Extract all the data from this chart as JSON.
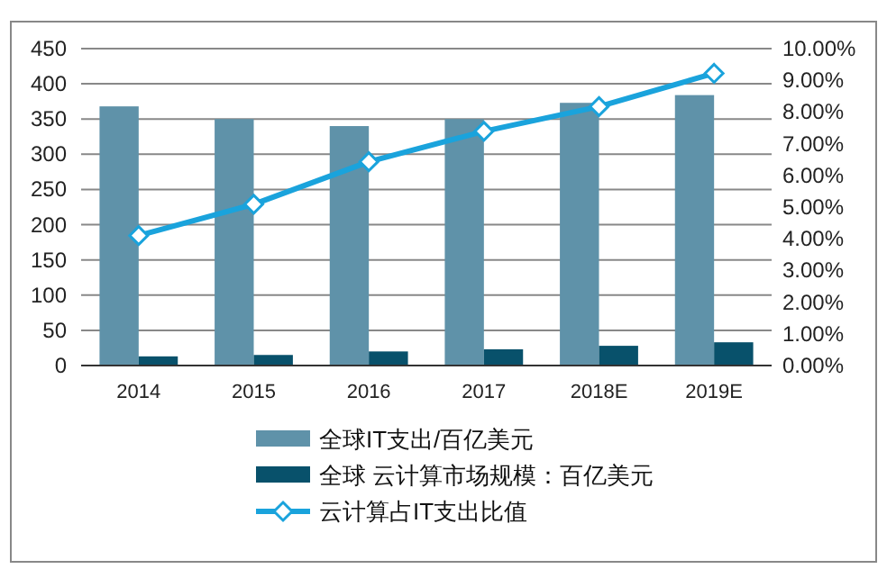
{
  "chart_data": {
    "type": "bar",
    "categories": [
      "2014",
      "2015",
      "2016",
      "2017",
      "2018E",
      "2019E"
    ],
    "series": [
      {
        "name": "全球IT支出/百亿美元",
        "color": "#5f92a9",
        "values": [
          368,
          350,
          340,
          350,
          373,
          384
        ]
      },
      {
        "name": "全球 云计算市场规模：百亿美元",
        "color": "#08516b",
        "values": [
          13,
          15,
          20,
          23,
          28,
          33
        ]
      },
      {
        "name": "云计算占IT支出比值",
        "type": "line",
        "axis": "y2",
        "color": "#1aa3dc",
        "marker": "diamond",
        "values": [
          4.1,
          5.09,
          6.43,
          7.39,
          8.17,
          9.22
        ]
      }
    ],
    "ylim": [
      0,
      450
    ],
    "yticks": [
      0,
      50,
      100,
      150,
      200,
      250,
      300,
      350,
      400,
      450
    ],
    "y2lim": [
      0,
      10
    ],
    "y2ticks": [
      {
        "value": 0,
        "label": "0.00%"
      },
      {
        "value": 1,
        "label": "1.00%"
      },
      {
        "value": 2,
        "label": "2.00%"
      },
      {
        "value": 3,
        "label": "3.00%"
      },
      {
        "value": 4,
        "label": "4.00%"
      },
      {
        "value": 5,
        "label": "5.00%"
      },
      {
        "value": 6,
        "label": "6.00%"
      },
      {
        "value": 7,
        "label": "7.00%"
      },
      {
        "value": 8,
        "label": "8.00%"
      },
      {
        "value": 9,
        "label": "9.00%"
      },
      {
        "value": 10,
        "label": "10.00%"
      }
    ],
    "grid": "y",
    "legend": "bottom"
  }
}
